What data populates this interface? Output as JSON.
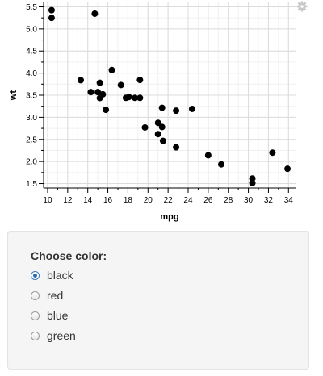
{
  "chart_data": {
    "type": "scatter",
    "xlabel": "mpg",
    "ylabel": "wt",
    "xlim": [
      9.6,
      34.7
    ],
    "ylim": [
      1.4,
      5.6
    ],
    "x_ticks": [
      10,
      12,
      14,
      16,
      18,
      20,
      22,
      24,
      26,
      28,
      30,
      32,
      34
    ],
    "y_ticks": [
      1.5,
      2.0,
      2.5,
      3.0,
      3.5,
      4.0,
      4.5,
      5.0,
      5.5
    ],
    "grid": true,
    "point_color": "#000000",
    "points": [
      {
        "x": 21.0,
        "y": 2.62
      },
      {
        "x": 21.0,
        "y": 2.875
      },
      {
        "x": 22.8,
        "y": 2.32
      },
      {
        "x": 21.4,
        "y": 3.215
      },
      {
        "x": 18.7,
        "y": 3.44
      },
      {
        "x": 18.1,
        "y": 3.46
      },
      {
        "x": 14.3,
        "y": 3.57
      },
      {
        "x": 24.4,
        "y": 3.19
      },
      {
        "x": 22.8,
        "y": 3.15
      },
      {
        "x": 19.2,
        "y": 3.44
      },
      {
        "x": 17.8,
        "y": 3.44
      },
      {
        "x": 16.4,
        "y": 4.07
      },
      {
        "x": 17.3,
        "y": 3.73
      },
      {
        "x": 15.2,
        "y": 3.78
      },
      {
        "x": 10.4,
        "y": 5.25
      },
      {
        "x": 10.4,
        "y": 5.424
      },
      {
        "x": 14.7,
        "y": 5.345
      },
      {
        "x": 32.4,
        "y": 2.2
      },
      {
        "x": 30.4,
        "y": 1.615
      },
      {
        "x": 33.9,
        "y": 1.835
      },
      {
        "x": 21.5,
        "y": 2.465
      },
      {
        "x": 15.5,
        "y": 3.52
      },
      {
        "x": 15.2,
        "y": 3.435
      },
      {
        "x": 13.3,
        "y": 3.84
      },
      {
        "x": 19.2,
        "y": 3.845
      },
      {
        "x": 27.3,
        "y": 1.935
      },
      {
        "x": 26.0,
        "y": 2.14
      },
      {
        "x": 30.4,
        "y": 1.513
      },
      {
        "x": 15.8,
        "y": 3.17
      },
      {
        "x": 19.7,
        "y": 2.77
      },
      {
        "x": 15.0,
        "y": 3.57
      },
      {
        "x": 21.4,
        "y": 2.78
      }
    ]
  },
  "settings_icon": "gear-icon",
  "controls": {
    "label": "Choose color:",
    "options": [
      "black",
      "red",
      "blue",
      "green"
    ],
    "selected": "black"
  }
}
